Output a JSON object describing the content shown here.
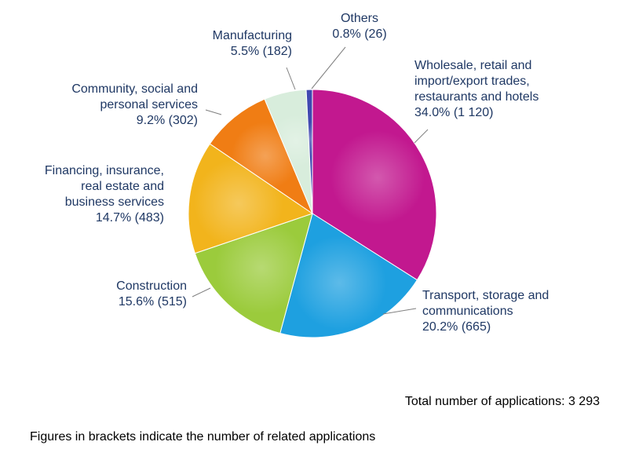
{
  "chart_data": {
    "type": "pie",
    "title": "",
    "slices": [
      {
        "label_lines": [
          "Wholesale, retail and",
          "import/export trades,",
          "restaurants and hotels"
        ],
        "pct_text": "34.0% (1 120)",
        "percent": 34.0,
        "count": 1120,
        "color": "#c2188f"
      },
      {
        "label_lines": [
          "Transport, storage and",
          "communications"
        ],
        "pct_text": "20.2% (665)",
        "percent": 20.2,
        "count": 665,
        "color": "#1ea0e0"
      },
      {
        "label_lines": [
          "Construction"
        ],
        "pct_text": "15.6% (515)",
        "percent": 15.6,
        "count": 515,
        "color": "#9bcb3c"
      },
      {
        "label_lines": [
          "Financing, insurance,",
          "real estate and",
          "business services"
        ],
        "pct_text": "14.7% (483)",
        "percent": 14.7,
        "count": 483,
        "color": "#f2b41c"
      },
      {
        "label_lines": [
          "Community, social and",
          "personal services"
        ],
        "pct_text": "9.2% (302)",
        "percent": 9.2,
        "count": 302,
        "color": "#f07d14"
      },
      {
        "label_lines": [
          "Manufacturing"
        ],
        "pct_text": "5.5% (182)",
        "percent": 5.5,
        "count": 182,
        "color": "#d8eddc"
      },
      {
        "label_lines": [
          "Others"
        ],
        "pct_text": "0.8% (26)",
        "percent": 0.8,
        "count": 26,
        "color": "#3f48b0"
      }
    ]
  },
  "total_text": "Total number of applications: 3 293",
  "note_text": "Figures in brackets indicate the number of related applications"
}
